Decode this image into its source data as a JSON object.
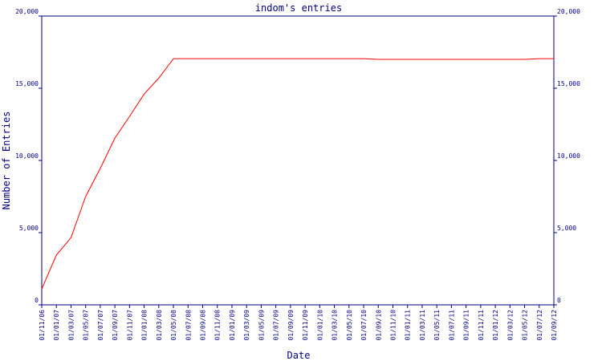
{
  "chart_data": {
    "type": "line",
    "title": "indom's entries",
    "xlabel": "Date",
    "ylabel": "Number of Entries",
    "categories": [
      "01/11/06",
      "01/01/07",
      "01/03/07",
      "01/05/07",
      "01/07/07",
      "01/09/07",
      "01/11/07",
      "01/01/08",
      "01/03/08",
      "01/05/08",
      "01/07/08",
      "01/09/08",
      "01/11/08",
      "01/01/09",
      "01/03/09",
      "01/05/09",
      "01/07/09",
      "01/09/09",
      "01/11/09",
      "01/01/10",
      "01/03/10",
      "01/05/10",
      "01/07/10",
      "01/09/10",
      "01/11/10",
      "01/01/11",
      "01/03/11",
      "01/05/11",
      "01/07/11",
      "01/09/11",
      "01/11/11",
      "01/01/12",
      "01/03/12",
      "01/05/12",
      "01/07/12",
      "01/09/12"
    ],
    "series": [
      {
        "name": "entries",
        "color": "#ff0000",
        "values": [
          1100,
          3450,
          4650,
          7500,
          9450,
          11550,
          13050,
          14600,
          15700,
          17050,
          17050,
          17050,
          17050,
          17050,
          17050,
          17050,
          17050,
          17050,
          17050,
          17050,
          17050,
          17050,
          17050,
          17000,
          17000,
          17000,
          17000,
          17000,
          17000,
          17000,
          17000,
          17000,
          17000,
          17000,
          17050,
          17050
        ]
      }
    ],
    "ylim": [
      0,
      20000
    ],
    "yticks": [
      0,
      {
        "value": 5000,
        "label": "5,000"
      },
      {
        "value": 10000,
        "label": "10,000"
      },
      {
        "value": 15000,
        "label": "15,000"
      },
      {
        "value": 20000,
        "label": "20,000"
      }
    ],
    "axis_color": "#000080"
  }
}
